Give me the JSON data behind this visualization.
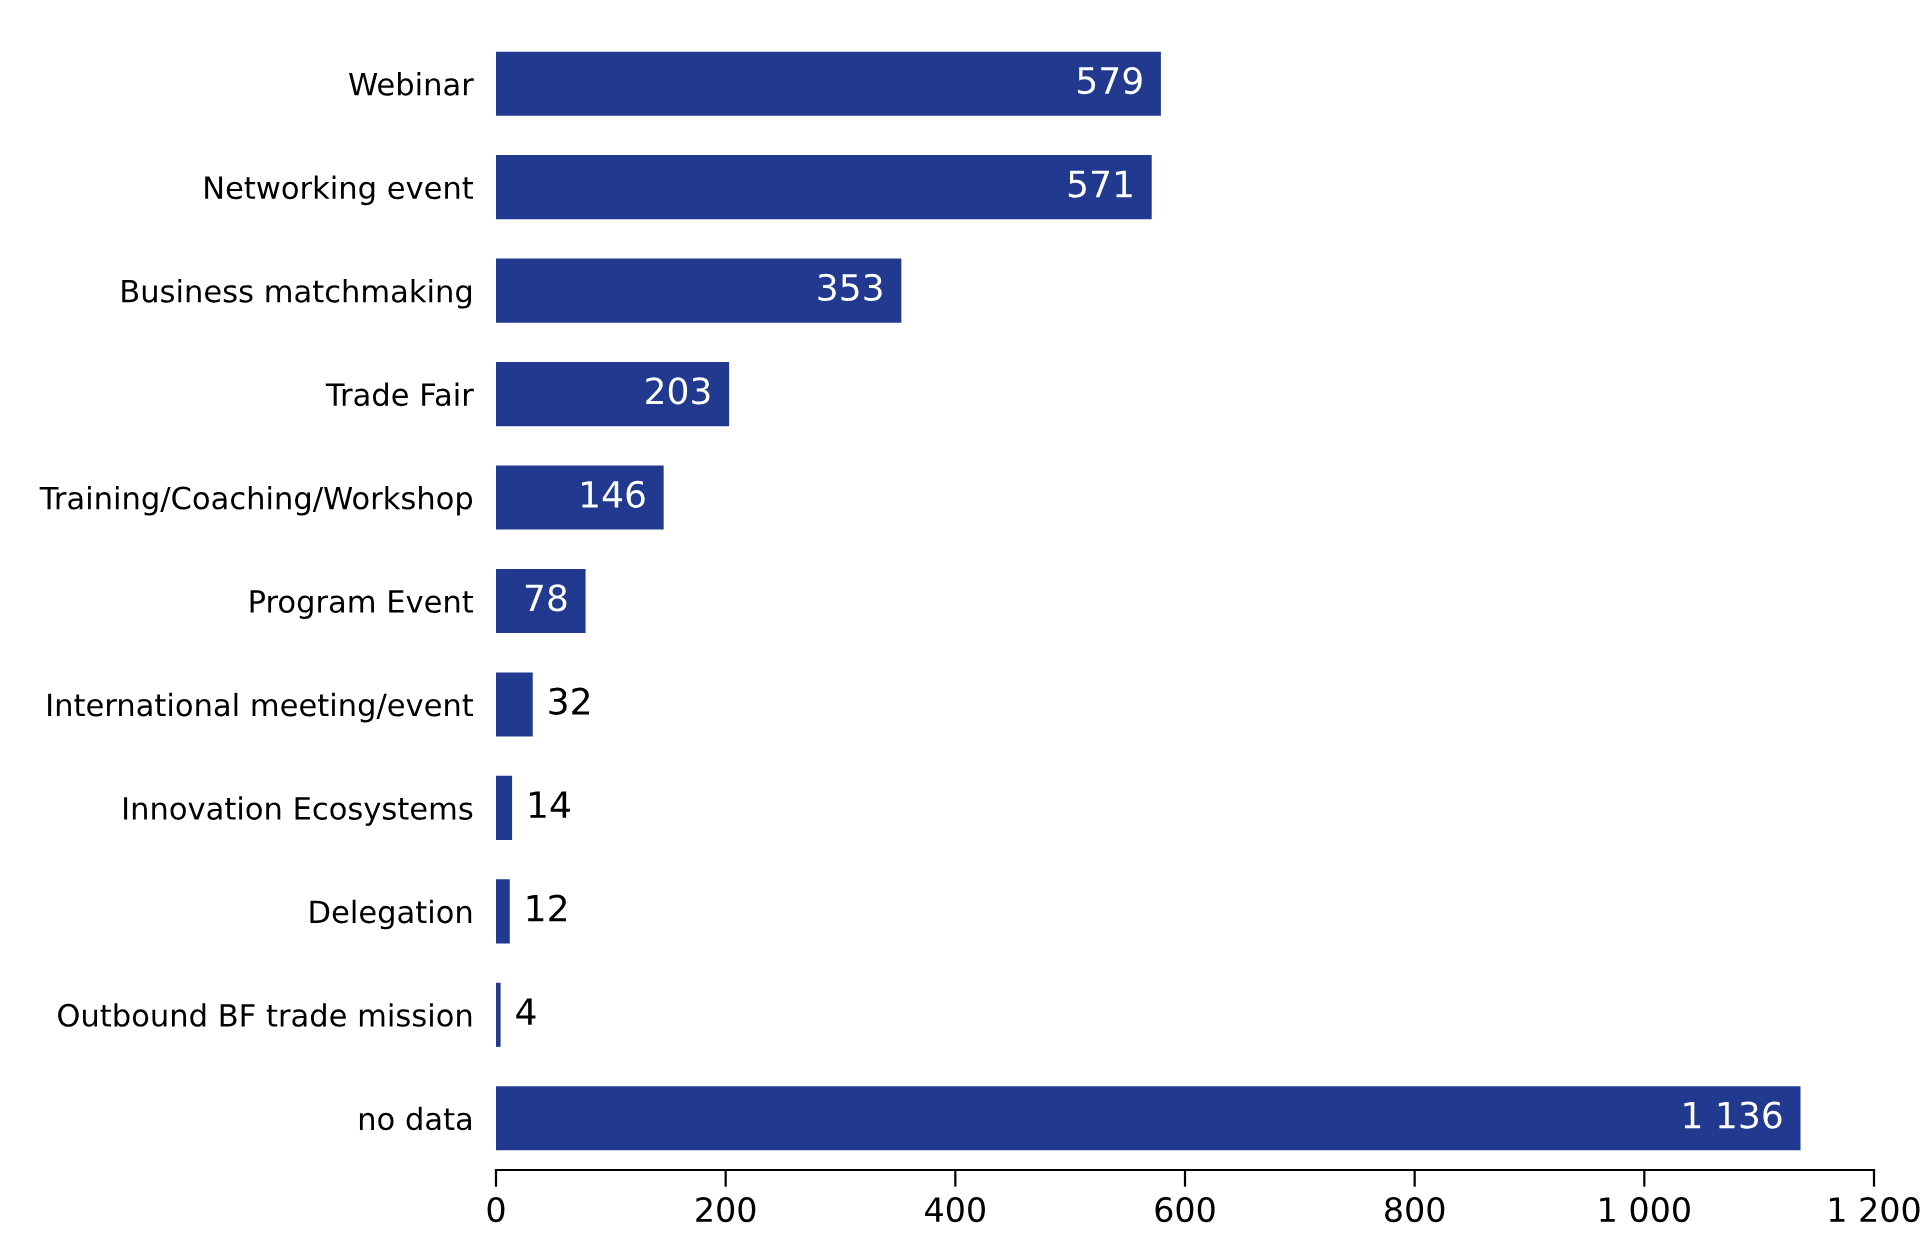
{
  "chart_data": {
    "type": "bar",
    "orientation": "horizontal",
    "categories": [
      "Webinar",
      "Networking event",
      "Business matchmaking",
      "Trade Fair",
      "Training/Coaching/Workshop",
      "Program Event",
      "International meeting/event",
      "Innovation Ecosystems",
      "Delegation",
      "Outbound BF trade mission",
      "no data"
    ],
    "values": [
      579,
      571,
      353,
      203,
      146,
      78,
      32,
      14,
      12,
      4,
      1136
    ],
    "value_labels": [
      "579",
      "571",
      "353",
      "203",
      "146",
      "78",
      "32",
      "14",
      "12",
      "4",
      "1 136"
    ],
    "color": "#213a8f",
    "xlim": [
      0,
      1200
    ],
    "xticks": [
      0,
      200,
      400,
      600,
      800,
      {
        "value": 1000,
        "label": "1 000"
      },
      {
        "value": 1200,
        "label": "1 200"
      }
    ],
    "grid": false,
    "legend": false
  }
}
